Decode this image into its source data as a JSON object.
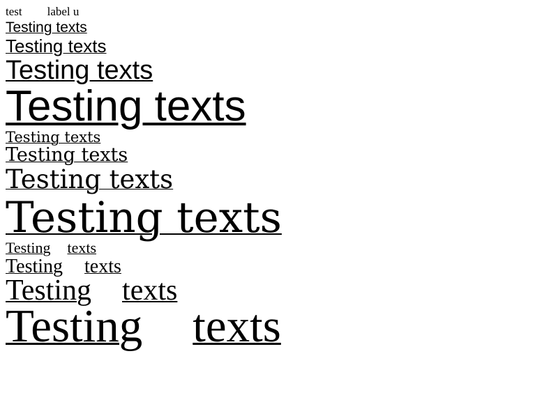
{
  "header": {
    "left_text": "test",
    "right_text": "label u"
  },
  "sans_group": [
    {
      "text": "Testing texts"
    },
    {
      "text": "Testing texts"
    },
    {
      "text": "Testing texts"
    },
    {
      "text": "Testing texts"
    }
  ],
  "serif_group": [
    {
      "text": "Testing texts"
    },
    {
      "text": "Testing texts"
    },
    {
      "text": "Testing texts"
    },
    {
      "text": "Testing texts"
    }
  ],
  "spaced_group": [
    {
      "word1": "Testing",
      "word2": "texts"
    },
    {
      "word1": "Testing",
      "word2": "texts"
    },
    {
      "word1": "Testing",
      "word2": "texts"
    },
    {
      "word1": "Testing",
      "word2": "texts"
    }
  ]
}
